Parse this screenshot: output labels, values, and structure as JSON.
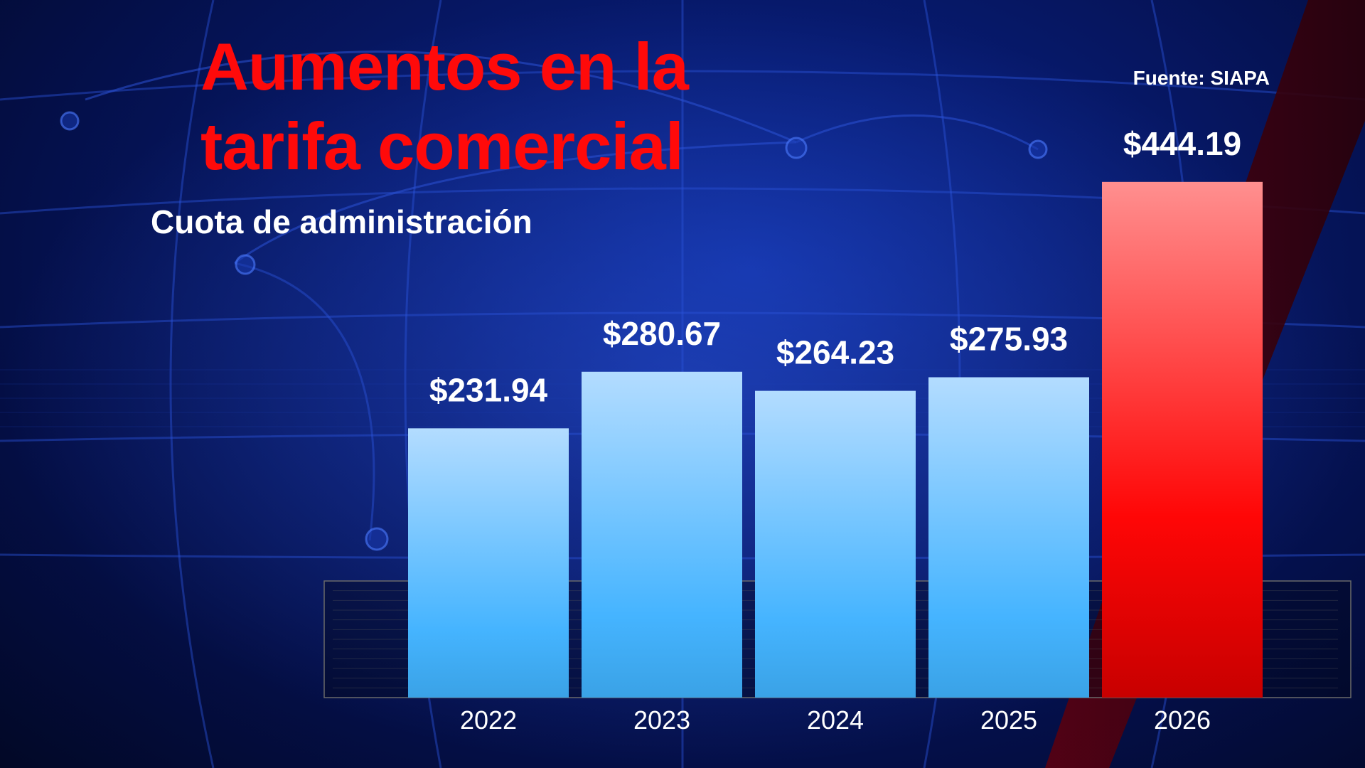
{
  "header": {
    "title": "Aumentos en la tarifa comercial",
    "subtitle": "Cuota de administración",
    "source": "Fuente: SIAPA"
  },
  "colors": {
    "title": "#ff0a0a",
    "bar_normal_top": "#b3dcff",
    "bar_normal_bottom": "#3aa2e6",
    "bar_highlight_top": "#ff8f8f",
    "bar_highlight_bottom": "#c80000",
    "label": "#ffffff"
  },
  "chart_data": {
    "type": "bar",
    "categories": [
      "2022",
      "2023",
      "2024",
      "2025",
      "2026"
    ],
    "values": [
      231.94,
      280.67,
      264.23,
      275.93,
      444.19
    ],
    "value_labels": [
      "$231.94",
      "$280.67",
      "$264.23",
      "$275.93",
      "$444.19"
    ],
    "highlight_index": 4,
    "ylim": [
      0,
      460
    ],
    "grid": false,
    "legend": "none"
  }
}
